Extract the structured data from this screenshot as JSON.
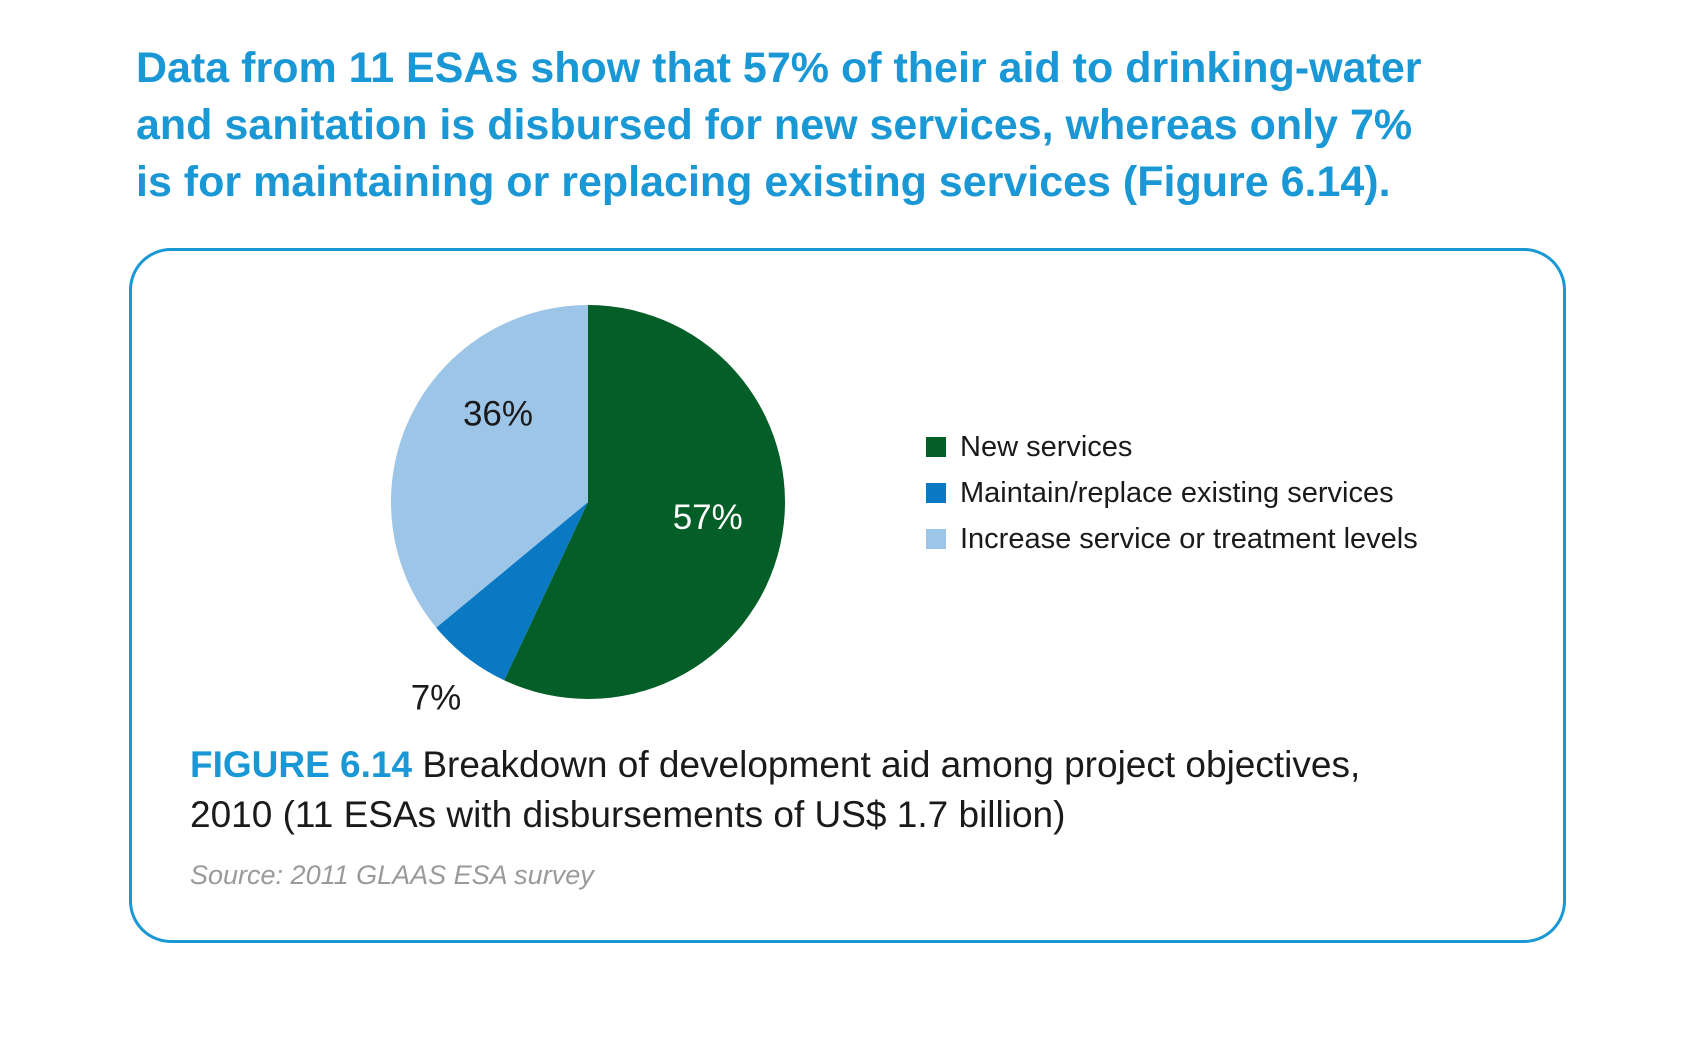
{
  "headline": {
    "lines": [
      "Data from 11 ESAs show that 57% of their aid to drinking-water",
      "and sanitation is disbursed for new services, whereas only 7%",
      "is for maintaining or replacing existing services (Figure 6.14)."
    ]
  },
  "colors": {
    "accent": "#1a97d5",
    "new_services": "#045e27",
    "maintain_replace": "#0a79c4",
    "increase_levels": "#9cc5e8",
    "source_text": "#9a9a9a"
  },
  "chart_data": {
    "type": "pie",
    "title": "",
    "legend_position": "right",
    "series": [
      {
        "name": "New services",
        "value": 57,
        "label": "57%",
        "color": "#045e27",
        "label_color": "#ffffff"
      },
      {
        "name": "Maintain/replace existing services",
        "value": 7,
        "label": "7%",
        "color": "#0a79c4",
        "label_color": "#1a1a1a"
      },
      {
        "name": "Increase service or treatment levels",
        "value": 36,
        "label": "36%",
        "color": "#9cc5e8",
        "label_color": "#1a1a1a"
      }
    ]
  },
  "caption": {
    "figure_label": "FIGURE 6.14",
    "line1": " Breakdown of development aid among project objectives,",
    "line2": "2010 (11 ESAs with disbursements of US$ 1.7 billion)"
  },
  "source": "Source: 2011 GLAAS ESA survey"
}
